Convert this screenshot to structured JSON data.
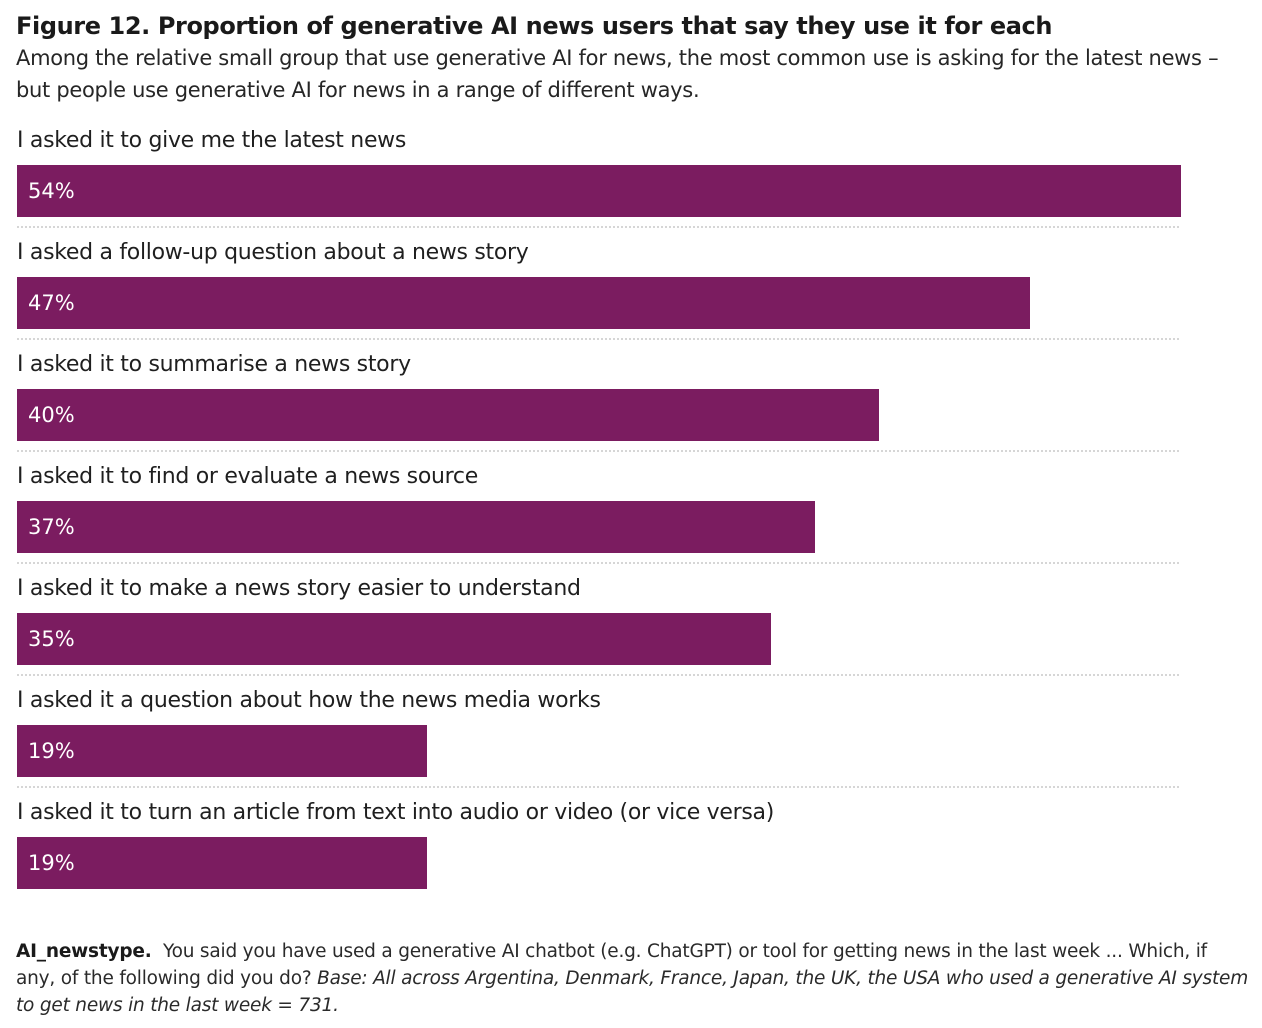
{
  "title": "Figure 12. Proportion of generative AI news users that say they use it for each",
  "subtitle": "Among the relative small group that use generative AI for news, the most common use is asking for the latest news – but people use generative AI for news in a range of different ways.",
  "chart_data": {
    "type": "bar",
    "orientation": "horizontal",
    "title": "Figure 12. Proportion of generative AI news users that say they use it for each",
    "xlabel": "",
    "ylabel": "",
    "xlim": [
      0,
      54
    ],
    "unit": "%",
    "bar_color": "#7b1c60",
    "categories": [
      "I asked it to give me the latest news",
      "I asked a follow-up question about a news story",
      "I asked it to summarise a news story",
      "I asked it to find or evaluate a news source",
      "I asked it to make a news story easier to understand",
      "I asked it a question about how the news media works",
      "I asked it to turn an article from text into audio or video (or vice versa)"
    ],
    "values": [
      54,
      47,
      40,
      37,
      35,
      19,
      19
    ],
    "value_labels": [
      "54%",
      "47%",
      "40%",
      "37%",
      "35%",
      "19%",
      "19%"
    ]
  },
  "footnote": {
    "code": "AI_newstype.",
    "question": "You said you have used a generative AI chatbot (e.g. ChatGPT) or tool for getting news in the last week ... Which, if any, of the following did you do?",
    "base": "Base: All across Argentina, Denmark, France, Japan, the UK, the USA who used a generative AI system to get news in the last week = 731."
  }
}
